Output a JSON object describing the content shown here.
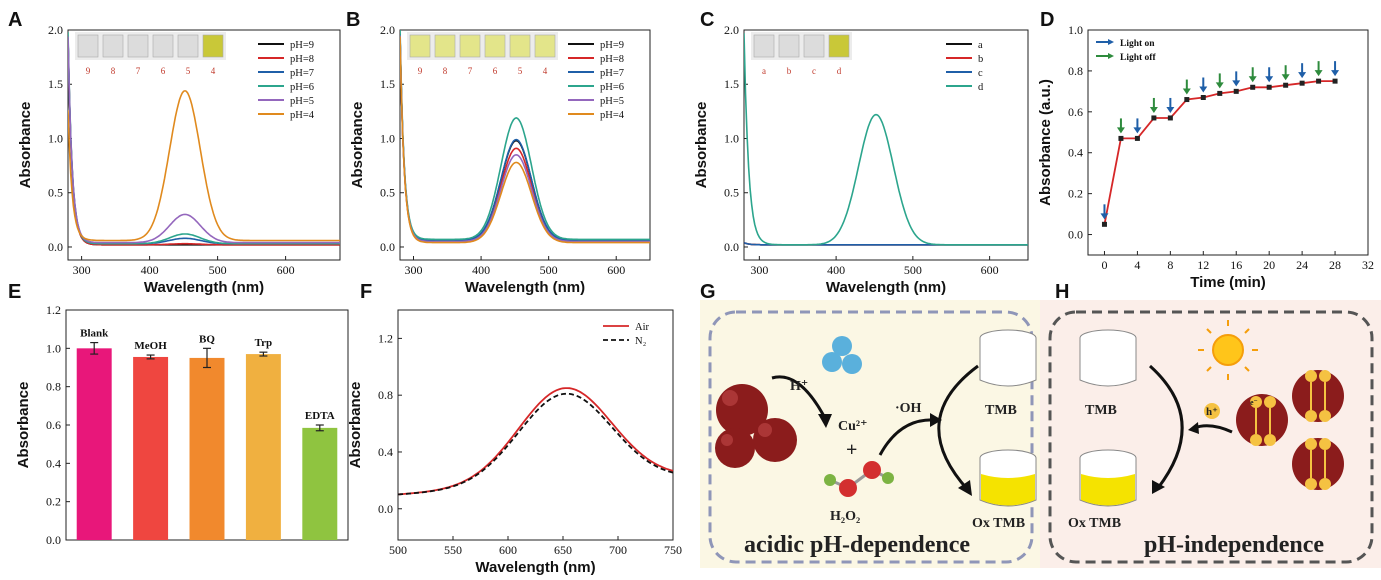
{
  "figure": {
    "panel_labels": [
      "A",
      "B",
      "C",
      "D",
      "E",
      "F",
      "G",
      "H"
    ]
  },
  "chart_data": [
    {
      "panel": "A",
      "type": "line",
      "xlabel": "Wavelength (nm)",
      "ylabel": "Absorbance",
      "xlim": [
        280,
        680
      ],
      "ylim": [
        -0.12,
        2.0
      ],
      "xticks": [
        300,
        400,
        500,
        600
      ],
      "yticks": [
        0.0,
        0.5,
        1.0,
        1.5,
        2.0
      ],
      "peak_center": 452,
      "inset_vials": [
        "9",
        "8",
        "7",
        "6",
        "5",
        "4"
      ],
      "legend_position": "top-right",
      "series": [
        {
          "name": "pH=9",
          "color": "#111111",
          "peak": 0.0,
          "baseline": 0.02,
          "uv": 1.9
        },
        {
          "name": "pH=8",
          "color": "#d62728",
          "peak": 0.01,
          "baseline": 0.02,
          "uv": 1.9
        },
        {
          "name": "pH=7",
          "color": "#1f5fa8",
          "peak": 0.05,
          "baseline": 0.03,
          "uv": 1.9
        },
        {
          "name": "pH=6",
          "color": "#2ca58d",
          "peak": 0.09,
          "baseline": 0.03,
          "uv": 1.95
        },
        {
          "name": "pH=5",
          "color": "#9467bd",
          "peak": 0.26,
          "baseline": 0.04,
          "uv": 1.9
        },
        {
          "name": "pH=4",
          "color": "#e08a1e",
          "peak": 1.38,
          "baseline": 0.06,
          "uv": 1.2
        }
      ]
    },
    {
      "panel": "B",
      "type": "line",
      "xlabel": "Wavelength (nm)",
      "ylabel": "Absorbance",
      "xlim": [
        280,
        650
      ],
      "ylim": [
        -0.12,
        2.0
      ],
      "xticks": [
        300,
        400,
        500,
        600
      ],
      "yticks": [
        0.0,
        0.5,
        1.0,
        1.5,
        2.0
      ],
      "peak_center": 452,
      "inset_vials": [
        "9",
        "8",
        "7",
        "6",
        "5",
        "4"
      ],
      "legend_position": "top-right",
      "series": [
        {
          "name": "pH=9",
          "color": "#111111",
          "peak": 0.92,
          "baseline": 0.06,
          "uv": 1.9
        },
        {
          "name": "pH=8",
          "color": "#d62728",
          "peak": 0.86,
          "baseline": 0.05,
          "uv": 1.9
        },
        {
          "name": "pH=7",
          "color": "#1f5fa8",
          "peak": 0.93,
          "baseline": 0.06,
          "uv": 1.9
        },
        {
          "name": "pH=6",
          "color": "#2ca58d",
          "peak": 1.12,
          "baseline": 0.07,
          "uv": 1.95
        },
        {
          "name": "pH=5",
          "color": "#9467bd",
          "peak": 0.8,
          "baseline": 0.05,
          "uv": 1.9
        },
        {
          "name": "pH=4",
          "color": "#e08a1e",
          "peak": 0.74,
          "baseline": 0.04,
          "uv": 1.9
        }
      ]
    },
    {
      "panel": "C",
      "type": "line",
      "xlabel": "Wavelength (nm)",
      "ylabel": "Absorbance",
      "xlim": [
        280,
        650
      ],
      "ylim": [
        -0.12,
        2.0
      ],
      "xticks": [
        300,
        400,
        500,
        600
      ],
      "yticks": [
        0.0,
        0.5,
        1.0,
        1.5,
        2.0
      ],
      "peak_center": 452,
      "inset_vials": [
        "a",
        "b",
        "c",
        "d"
      ],
      "legend_position": "top-right",
      "series": [
        {
          "name": "a",
          "color": "#111111",
          "peak": 0.0,
          "baseline": 0.02,
          "uv": 0.02
        },
        {
          "name": "b",
          "color": "#d62728",
          "peak": 0.0,
          "baseline": 0.02,
          "uv": 0.02
        },
        {
          "name": "c",
          "color": "#1f5fa8",
          "peak": 0.0,
          "baseline": 0.02,
          "uv": 0.02
        },
        {
          "name": "d",
          "color": "#2ca58d",
          "peak": 1.2,
          "baseline": 0.02,
          "uv": 1.95
        }
      ]
    },
    {
      "panel": "D",
      "type": "line",
      "xlabel": "Time (min)",
      "ylabel": "Absorbance (a.u.)",
      "xlim": [
        -2,
        32
      ],
      "ylim": [
        -0.1,
        1.0
      ],
      "xticks": [
        0,
        4,
        8,
        12,
        16,
        20,
        24,
        28,
        32
      ],
      "yticks": [
        0.0,
        0.2,
        0.4,
        0.6,
        0.8,
        1.0
      ],
      "legend": [
        {
          "name": "Light on",
          "color": "#1f5fa8"
        },
        {
          "name": "Light off",
          "color": "#2e8b3d"
        }
      ],
      "line_color": "#d62728",
      "x": [
        0,
        2,
        4,
        6,
        8,
        10,
        12,
        14,
        16,
        18,
        20,
        22,
        24,
        26,
        28
      ],
      "y": [
        0.05,
        0.47,
        0.47,
        0.57,
        0.57,
        0.66,
        0.67,
        0.69,
        0.7,
        0.72,
        0.72,
        0.73,
        0.74,
        0.75,
        0.75
      ],
      "light_on_x": [
        0,
        4,
        8,
        12,
        16,
        20,
        24,
        28
      ],
      "light_off_x": [
        2,
        6,
        10,
        14,
        18,
        22,
        26
      ]
    },
    {
      "panel": "E",
      "type": "bar",
      "xlabel": "",
      "ylabel": "Absorbance",
      "ylim": [
        0.0,
        1.2
      ],
      "yticks": [
        0.0,
        0.2,
        0.4,
        0.6,
        0.8,
        1.0,
        1.2
      ],
      "categories": [
        "Blank",
        "MeOH",
        "BQ",
        "Trp",
        "EDTA"
      ],
      "values": [
        1.0,
        0.955,
        0.95,
        0.97,
        0.585
      ],
      "errors": [
        0.03,
        0.01,
        0.05,
        0.01,
        0.015
      ],
      "colors": [
        "#e8177a",
        "#ef4640",
        "#f1892d",
        "#f0b040",
        "#8fc440"
      ]
    },
    {
      "panel": "F",
      "type": "line",
      "xlabel": "Wavelength (nm)",
      "ylabel": "Absorbance",
      "xlim": [
        500,
        750
      ],
      "ylim": [
        -0.22,
        1.4
      ],
      "xticks": [
        500,
        550,
        600,
        650,
        700,
        750
      ],
      "yticks": [
        0.0,
        0.4,
        0.8,
        1.2
      ],
      "peak_center": 652,
      "legend_position": "top-right",
      "series": [
        {
          "name": "Air",
          "color": "#d62728",
          "dash": "",
          "peak": 0.85,
          "start": 0.1,
          "end": 0.22
        },
        {
          "name": "N₂",
          "color": "#111111",
          "dash": "5,3",
          "peak": 0.81,
          "start": 0.1,
          "end": 0.21
        }
      ]
    }
  ],
  "schemes": {
    "G": {
      "proton": "H⁺",
      "copper": "Cu²⁺",
      "plus": "+",
      "radical": "·OH",
      "peroxide": "H₂O₂",
      "tmb": "TMB",
      "ox_tmb": "Ox TMB",
      "caption": "acidic pH-dependence"
    },
    "H": {
      "tmb": "TMB",
      "ox_tmb": "Ox TMB",
      "hole": "h⁺",
      "electron": "e⁻",
      "caption": "pH-independence"
    }
  }
}
